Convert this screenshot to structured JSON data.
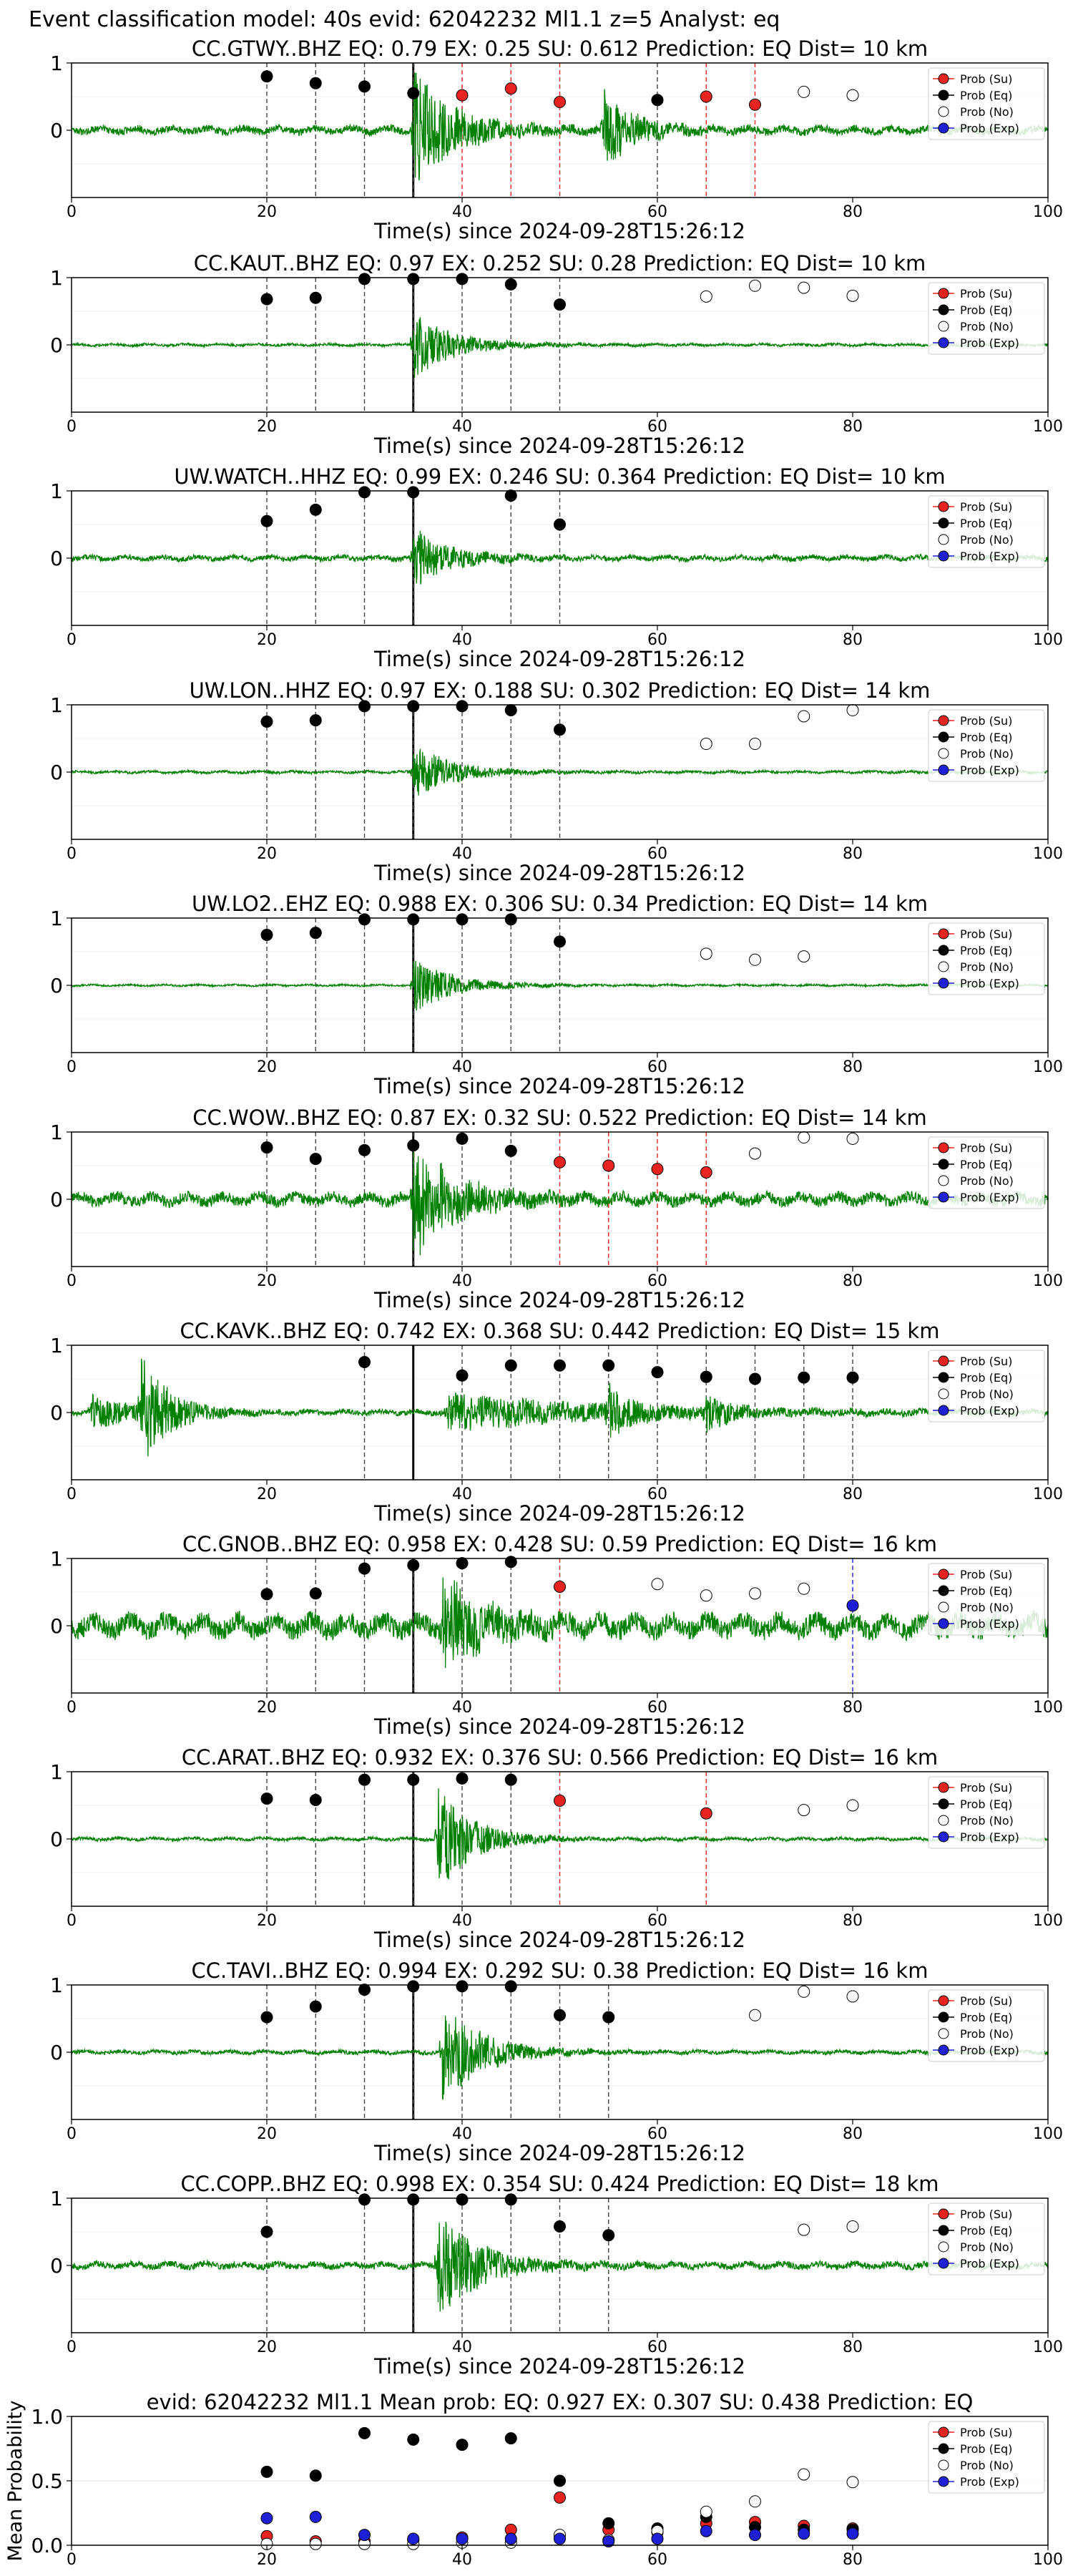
{
  "figure_title": "Event classification model: 40s evid: 62042232 Ml1.1 z=5 Analyst: eq",
  "legend_labels": [
    "Prob (Su)",
    "Prob (Eq)",
    "Prob (No)",
    "Prob (Exp)"
  ],
  "colors": {
    "su": "#e8221f",
    "eq": "#000000",
    "no": "#ffffff",
    "exp": "#1f1fd6",
    "trace": "#008000"
  },
  "chart_data": [
    {
      "type": "line",
      "station": "CC.GTWY..BHZ",
      "title": "CC.GTWY..BHZ   EQ: 0.79  EX: 0.25  SU: 0.612   Prediction: EQ    Dist= 10 km",
      "xlabel": "Time(s) since 2024-09-28T15:26:12",
      "xlim": [
        0,
        100
      ],
      "ylim": [
        -1,
        1
      ],
      "xticks": [
        0,
        20,
        40,
        60,
        80,
        100
      ],
      "yticks": [
        1,
        0
      ],
      "pick_time": 35,
      "seed": 3,
      "noise": 0.06,
      "bursts": [
        [
          35,
          0.95,
          4
        ],
        [
          54.5,
          0.6,
          3
        ]
      ],
      "points": [
        [
          20,
          0.8,
          "eq"
        ],
        [
          25,
          0.7,
          "eq"
        ],
        [
          30,
          0.65,
          "eq"
        ],
        [
          35,
          0.55,
          "eq"
        ],
        [
          40,
          0.52,
          "su"
        ],
        [
          45,
          0.62,
          "su"
        ],
        [
          50,
          0.42,
          "su"
        ],
        [
          60,
          0.45,
          "eq"
        ],
        [
          65,
          0.5,
          "su"
        ],
        [
          70,
          0.38,
          "su"
        ],
        [
          75,
          0.57,
          "no"
        ],
        [
          80,
          0.52,
          "no"
        ]
      ]
    },
    {
      "type": "line",
      "station": "CC.KAUT..BHZ",
      "title": "CC.KAUT..BHZ   EQ: 0.97  EX: 0.252  SU: 0.28   Prediction: EQ    Dist= 10 km",
      "xlabel": "Time(s) since 2024-09-28T15:26:12",
      "xlim": [
        0,
        100
      ],
      "ylim": [
        -1,
        1
      ],
      "xticks": [
        0,
        20,
        40,
        60,
        80,
        100
      ],
      "yticks": [
        1,
        0
      ],
      "pick_time": 35,
      "seed": 7,
      "noise": 0.02,
      "bursts": [
        [
          35,
          0.55,
          4
        ]
      ],
      "points": [
        [
          20,
          0.68,
          "eq"
        ],
        [
          25,
          0.7,
          "eq"
        ],
        [
          30,
          0.98,
          "eq"
        ],
        [
          35,
          0.98,
          "eq"
        ],
        [
          40,
          0.98,
          "eq"
        ],
        [
          45,
          0.9,
          "eq"
        ],
        [
          50,
          0.6,
          "eq"
        ],
        [
          65,
          0.72,
          "no"
        ],
        [
          70,
          0.88,
          "no"
        ],
        [
          75,
          0.85,
          "no"
        ],
        [
          80,
          0.73,
          "no"
        ]
      ]
    },
    {
      "type": "line",
      "station": "UW.WATCH..HHZ",
      "title": "UW.WATCH..HHZ   EQ: 0.99  EX: 0.246  SU: 0.364   Prediction: EQ    Dist= 10 km",
      "xlabel": "Time(s) since 2024-09-28T15:26:12",
      "xlim": [
        0,
        100
      ],
      "ylim": [
        -1,
        1
      ],
      "xticks": [
        0,
        20,
        40,
        60,
        80,
        100
      ],
      "yticks": [
        1,
        0
      ],
      "pick_time": 35,
      "seed": 11,
      "noise": 0.04,
      "bursts": [
        [
          35,
          0.5,
          3.5
        ]
      ],
      "points": [
        [
          20,
          0.55,
          "eq"
        ],
        [
          25,
          0.72,
          "eq"
        ],
        [
          30,
          0.98,
          "eq"
        ],
        [
          35,
          0.98,
          "eq"
        ],
        [
          45,
          0.93,
          "eq"
        ],
        [
          50,
          0.5,
          "eq"
        ]
      ]
    },
    {
      "type": "line",
      "station": "UW.LON..HHZ",
      "title": "UW.LON..HHZ   EQ: 0.97  EX: 0.188  SU: 0.302   Prediction: EQ    Dist= 14 km",
      "xlabel": "Time(s) since 2024-09-28T15:26:12",
      "xlim": [
        0,
        100
      ],
      "ylim": [
        -1,
        1
      ],
      "xticks": [
        0,
        20,
        40,
        60,
        80,
        100
      ],
      "yticks": [
        1,
        0
      ],
      "pick_time": 35,
      "seed": 13,
      "noise": 0.02,
      "bursts": [
        [
          35,
          0.45,
          4
        ]
      ],
      "points": [
        [
          20,
          0.75,
          "eq"
        ],
        [
          25,
          0.77,
          "eq"
        ],
        [
          30,
          0.98,
          "eq"
        ],
        [
          35,
          0.98,
          "eq"
        ],
        [
          40,
          0.98,
          "eq"
        ],
        [
          45,
          0.92,
          "eq"
        ],
        [
          50,
          0.63,
          "eq"
        ],
        [
          65,
          0.42,
          "no"
        ],
        [
          70,
          0.42,
          "no"
        ],
        [
          75,
          0.83,
          "no"
        ],
        [
          80,
          0.92,
          "no"
        ]
      ]
    },
    {
      "type": "line",
      "station": "UW.LO2..EHZ",
      "title": "UW.LO2..EHZ   EQ: 0.988  EX: 0.306  SU: 0.34   Prediction: EQ    Dist= 14 km",
      "xlabel": "Time(s) since 2024-09-28T15:26:12",
      "xlim": [
        0,
        100
      ],
      "ylim": [
        -1,
        1
      ],
      "xticks": [
        0,
        20,
        40,
        60,
        80,
        100
      ],
      "yticks": [
        1,
        0
      ],
      "pick_time": 35,
      "seed": 17,
      "noise": 0.015,
      "bursts": [
        [
          35,
          0.45,
          4
        ]
      ],
      "points": [
        [
          20,
          0.75,
          "eq"
        ],
        [
          25,
          0.78,
          "eq"
        ],
        [
          30,
          0.98,
          "eq"
        ],
        [
          35,
          0.98,
          "eq"
        ],
        [
          40,
          0.98,
          "eq"
        ],
        [
          45,
          0.98,
          "eq"
        ],
        [
          50,
          0.65,
          "eq"
        ],
        [
          65,
          0.47,
          "no"
        ],
        [
          70,
          0.38,
          "no"
        ],
        [
          75,
          0.43,
          "no"
        ]
      ]
    },
    {
      "type": "line",
      "station": "CC.WOW..BHZ",
      "title": "CC.WOW..BHZ   EQ: 0.87  EX: 0.32  SU: 0.522   Prediction: EQ    Dist= 14 km",
      "xlabel": "Time(s) since 2024-09-28T15:26:12",
      "xlim": [
        0,
        100
      ],
      "ylim": [
        -1,
        1
      ],
      "xticks": [
        0,
        20,
        40,
        60,
        80,
        100
      ],
      "yticks": [
        1,
        0
      ],
      "pick_time": 35,
      "seed": 19,
      "noise": 0.09,
      "bursts": [
        [
          35,
          0.95,
          4
        ]
      ],
      "points": [
        [
          20,
          0.77,
          "eq"
        ],
        [
          25,
          0.6,
          "eq"
        ],
        [
          30,
          0.73,
          "eq"
        ],
        [
          35,
          0.8,
          "eq"
        ],
        [
          40,
          0.9,
          "eq"
        ],
        [
          45,
          0.72,
          "eq"
        ],
        [
          50,
          0.55,
          "su"
        ],
        [
          55,
          0.5,
          "su"
        ],
        [
          60,
          0.45,
          "su"
        ],
        [
          65,
          0.4,
          "su"
        ],
        [
          70,
          0.68,
          "no"
        ],
        [
          75,
          0.92,
          "no"
        ],
        [
          80,
          0.9,
          "no"
        ]
      ]
    },
    {
      "type": "line",
      "station": "CC.KAVK..BHZ",
      "title": "CC.KAVK..BHZ   EQ: 0.742  EX: 0.368  SU: 0.442   Prediction: EQ    Dist= 15 km",
      "xlabel": "Time(s) since 2024-09-28T15:26:12",
      "xlim": [
        0,
        100
      ],
      "ylim": [
        -1,
        1
      ],
      "xticks": [
        0,
        20,
        40,
        60,
        80,
        100
      ],
      "yticks": [
        1,
        0
      ],
      "pick_time": 35,
      "seed": 23,
      "noise": 0.04,
      "bursts": [
        [
          7,
          0.95,
          2.5
        ],
        [
          2,
          0.25,
          5
        ],
        [
          38.5,
          0.3,
          15
        ],
        [
          55,
          0.4,
          2
        ],
        [
          65,
          0.3,
          2
        ]
      ],
      "points": [
        [
          30,
          0.75,
          "eq"
        ],
        [
          40,
          0.55,
          "eq"
        ],
        [
          45,
          0.7,
          "eq"
        ],
        [
          50,
          0.7,
          "eq"
        ],
        [
          55,
          0.7,
          "eq"
        ],
        [
          60,
          0.6,
          "eq"
        ],
        [
          65,
          0.53,
          "eq"
        ],
        [
          70,
          0.5,
          "eq"
        ],
        [
          75,
          0.52,
          "eq"
        ],
        [
          80,
          0.52,
          "eq"
        ]
      ]
    },
    {
      "type": "line",
      "station": "CC.GNOB..BHZ",
      "title": "CC.GNOB..BHZ   EQ: 0.958  EX: 0.428  SU: 0.59   Prediction: EQ    Dist= 16 km",
      "xlabel": "Time(s) since 2024-09-28T15:26:12",
      "xlim": [
        0,
        100
      ],
      "ylim": [
        -1,
        1
      ],
      "xticks": [
        0,
        20,
        40,
        60,
        80,
        100
      ],
      "yticks": [
        1,
        0
      ],
      "pick_time": 35,
      "seed": 29,
      "noise": 0.16,
      "bursts": [
        [
          38,
          0.75,
          3.5
        ]
      ],
      "points": [
        [
          20,
          0.47,
          "eq"
        ],
        [
          25,
          0.48,
          "eq"
        ],
        [
          30,
          0.85,
          "eq"
        ],
        [
          35,
          0.9,
          "eq"
        ],
        [
          40,
          0.93,
          "eq"
        ],
        [
          45,
          0.95,
          "eq"
        ],
        [
          50,
          0.58,
          "su"
        ],
        [
          60,
          0.62,
          "no"
        ],
        [
          65,
          0.45,
          "no"
        ],
        [
          70,
          0.48,
          "no"
        ],
        [
          75,
          0.55,
          "no"
        ],
        [
          80,
          0.3,
          "exp"
        ]
      ]
    },
    {
      "type": "line",
      "station": "CC.ARAT..BHZ",
      "title": "CC.ARAT..BHZ   EQ: 0.932  EX: 0.376  SU: 0.566   Prediction: EQ    Dist= 16 km",
      "xlabel": "Time(s) since 2024-09-28T15:26:12",
      "xlim": [
        0,
        100
      ],
      "ylim": [
        -1,
        1
      ],
      "xticks": [
        0,
        20,
        40,
        60,
        80,
        100
      ],
      "yticks": [
        1,
        0
      ],
      "pick_time": 35,
      "seed": 31,
      "noise": 0.025,
      "bursts": [
        [
          37.5,
          0.9,
          3.5
        ]
      ],
      "points": [
        [
          20,
          0.6,
          "eq"
        ],
        [
          25,
          0.58,
          "eq"
        ],
        [
          30,
          0.88,
          "eq"
        ],
        [
          35,
          0.88,
          "eq"
        ],
        [
          40,
          0.9,
          "eq"
        ],
        [
          45,
          0.88,
          "eq"
        ],
        [
          50,
          0.57,
          "su"
        ],
        [
          65,
          0.38,
          "su"
        ],
        [
          75,
          0.43,
          "no"
        ],
        [
          80,
          0.5,
          "no"
        ]
      ]
    },
    {
      "type": "line",
      "station": "CC.TAVI..BHZ",
      "title": "CC.TAVI..BHZ   EQ: 0.994  EX: 0.292  SU: 0.38   Prediction: EQ    Dist= 16 km",
      "xlabel": "Time(s) since 2024-09-28T15:26:12",
      "xlim": [
        0,
        100
      ],
      "ylim": [
        -1,
        1
      ],
      "xticks": [
        0,
        20,
        40,
        60,
        80,
        100
      ],
      "yticks": [
        1,
        0
      ],
      "pick_time": 35,
      "seed": 37,
      "noise": 0.03,
      "bursts": [
        [
          38,
          0.85,
          4
        ]
      ],
      "points": [
        [
          20,
          0.52,
          "eq"
        ],
        [
          25,
          0.68,
          "eq"
        ],
        [
          30,
          0.93,
          "eq"
        ],
        [
          35,
          0.98,
          "eq"
        ],
        [
          40,
          0.98,
          "eq"
        ],
        [
          45,
          0.98,
          "eq"
        ],
        [
          50,
          0.55,
          "eq"
        ],
        [
          55,
          0.52,
          "eq"
        ],
        [
          70,
          0.55,
          "no"
        ],
        [
          75,
          0.9,
          "no"
        ],
        [
          80,
          0.83,
          "no"
        ]
      ]
    },
    {
      "type": "line",
      "station": "CC.COPP..BHZ",
      "title": "CC.COPP..BHZ   EQ: 0.998  EX: 0.354  SU: 0.424   Prediction: EQ    Dist= 18 km",
      "xlabel": "Time(s) since 2024-09-28T15:26:12",
      "xlim": [
        0,
        100
      ],
      "ylim": [
        -1,
        1
      ],
      "xticks": [
        0,
        20,
        40,
        60,
        80,
        100
      ],
      "yticks": [
        1,
        0
      ],
      "pick_time": 35,
      "seed": 41,
      "noise": 0.05,
      "bursts": [
        [
          37.5,
          0.9,
          4
        ]
      ],
      "points": [
        [
          20,
          0.5,
          "eq"
        ],
        [
          30,
          0.98,
          "eq"
        ],
        [
          35,
          0.98,
          "eq"
        ],
        [
          40,
          0.98,
          "eq"
        ],
        [
          45,
          0.98,
          "eq"
        ],
        [
          50,
          0.58,
          "eq"
        ],
        [
          55,
          0.45,
          "eq"
        ],
        [
          75,
          0.53,
          "no"
        ],
        [
          80,
          0.58,
          "no"
        ]
      ]
    },
    {
      "type": "scatter",
      "title": "evid: 62042232  Ml1.1   Mean prob:   EQ: 0.927  EX: 0.307  SU: 0.438   Prediction: EQ",
      "ylabel": "Mean Probability",
      "xlim": [
        0,
        100
      ],
      "ylim": [
        0,
        1
      ],
      "xticks": [
        0,
        20,
        40,
        60,
        80,
        100
      ],
      "yticks": [
        0.0,
        0.5,
        1.0
      ],
      "ytick_labels": [
        "0.0",
        "0.5",
        "1.0"
      ],
      "series": {
        "su": [
          [
            20,
            0.07
          ],
          [
            25,
            0.03
          ],
          [
            30,
            0.03
          ],
          [
            35,
            0.04
          ],
          [
            40,
            0.06
          ],
          [
            45,
            0.12
          ],
          [
            50,
            0.37
          ],
          [
            55,
            0.12
          ],
          [
            60,
            0.1
          ],
          [
            65,
            0.17
          ],
          [
            70,
            0.18
          ],
          [
            75,
            0.15
          ],
          [
            80,
            0.13
          ]
        ],
        "eq": [
          [
            20,
            0.57
          ],
          [
            25,
            0.54
          ],
          [
            30,
            0.87
          ],
          [
            35,
            0.82
          ],
          [
            40,
            0.78
          ],
          [
            45,
            0.83
          ],
          [
            50,
            0.5
          ],
          [
            55,
            0.17
          ],
          [
            60,
            0.13
          ],
          [
            65,
            0.22
          ],
          [
            70,
            0.14
          ],
          [
            75,
            0.12
          ],
          [
            80,
            0.12
          ]
        ],
        "no": [
          [
            20,
            0.01
          ],
          [
            25,
            0.01
          ],
          [
            30,
            0.01
          ],
          [
            35,
            0.01
          ],
          [
            40,
            0.02
          ],
          [
            45,
            0.02
          ],
          [
            50,
            0.08
          ],
          [
            55,
            0.04
          ],
          [
            60,
            0.11
          ],
          [
            65,
            0.26
          ],
          [
            70,
            0.34
          ],
          [
            75,
            0.55
          ],
          [
            80,
            0.49
          ]
        ],
        "exp": [
          [
            20,
            0.21
          ],
          [
            25,
            0.22
          ],
          [
            30,
            0.08
          ],
          [
            35,
            0.05
          ],
          [
            40,
            0.05
          ],
          [
            45,
            0.05
          ],
          [
            50,
            0.05
          ],
          [
            55,
            0.03
          ],
          [
            60,
            0.05
          ],
          [
            65,
            0.11
          ],
          [
            70,
            0.08
          ],
          [
            75,
            0.09
          ],
          [
            80,
            0.09
          ]
        ]
      }
    }
  ]
}
